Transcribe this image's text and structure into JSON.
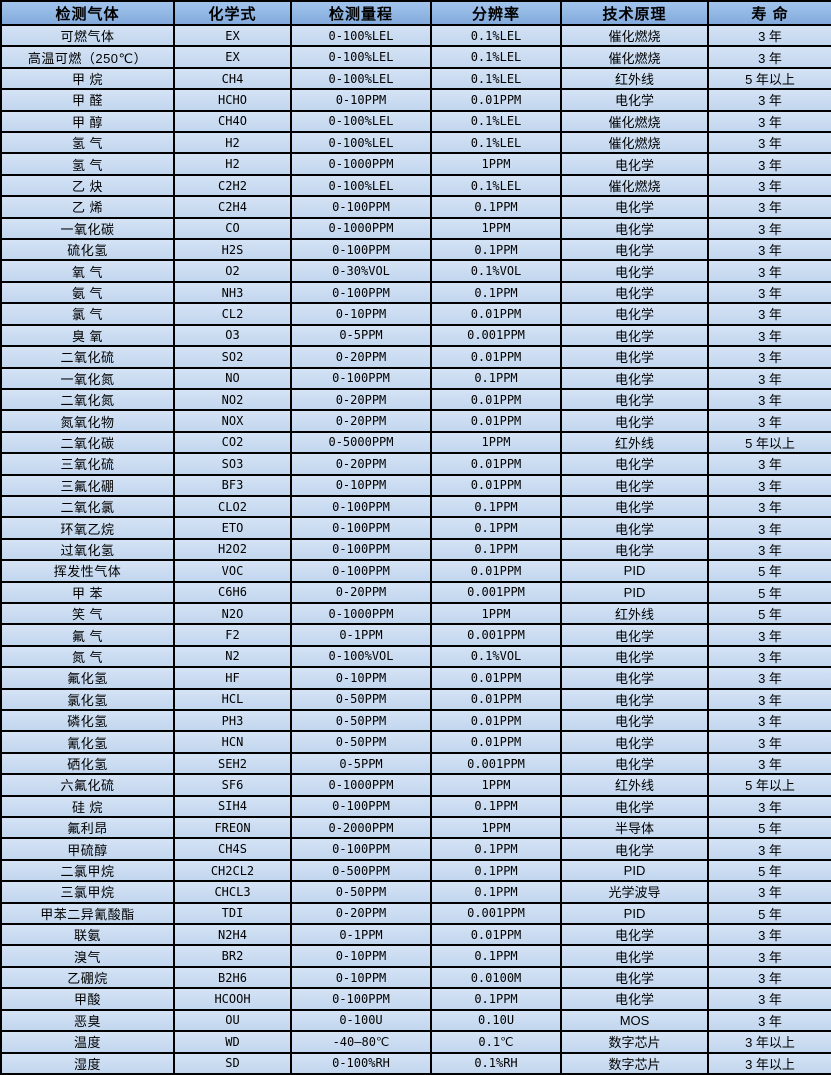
{
  "colors": {
    "header_bg_top": "#A2C5ED",
    "header_bg_bottom": "#82AADB",
    "row_bg_top": "#D5E3F5",
    "row_bg_bottom": "#C2D6EE",
    "border": "#000000",
    "text": "#000000"
  },
  "columns": [
    {
      "key": "gas",
      "label": "检测气体"
    },
    {
      "key": "formula",
      "label": "化学式"
    },
    {
      "key": "range",
      "label": "检测量程"
    },
    {
      "key": "resolution",
      "label": "分辨率"
    },
    {
      "key": "principle",
      "label": "技术原理"
    },
    {
      "key": "lifespan",
      "label": "寿 命"
    }
  ],
  "rows": [
    [
      "可燃气体",
      "EX",
      "0-100%LEL",
      "0.1%LEL",
      "催化燃烧",
      "3 年"
    ],
    [
      "高温可燃（250℃）",
      "EX",
      "0-100%LEL",
      "0.1%LEL",
      "催化燃烧",
      "3 年"
    ],
    [
      "甲 烷",
      "CH4",
      "0-100%LEL",
      "0.1%LEL",
      "红外线",
      "5 年以上"
    ],
    [
      "甲 醛",
      "HCHO",
      "0-10PPM",
      "0.01PPM",
      "电化学",
      "3 年"
    ],
    [
      "甲 醇",
      "CH4O",
      "0-100%LEL",
      "0.1%LEL",
      "催化燃烧",
      "3 年"
    ],
    [
      "氢 气",
      "H2",
      "0-100%LEL",
      "0.1%LEL",
      "催化燃烧",
      "3 年"
    ],
    [
      "氢 气",
      "H2",
      "0-1000PPM",
      "1PPM",
      "电化学",
      "3 年"
    ],
    [
      "乙 炔",
      "C2H2",
      "0-100%LEL",
      "0.1%LEL",
      "催化燃烧",
      "3 年"
    ],
    [
      "乙 烯",
      "C2H4",
      "0-100PPM",
      "0.1PPM",
      "电化学",
      "3 年"
    ],
    [
      "一氧化碳",
      "CO",
      "0-1000PPM",
      "1PPM",
      "电化学",
      "3 年"
    ],
    [
      "硫化氢",
      "H2S",
      "0-100PPM",
      "0.1PPM",
      "电化学",
      "3 年"
    ],
    [
      "氧 气",
      "O2",
      "0-30%VOL",
      "0.1%VOL",
      "电化学",
      "3 年"
    ],
    [
      "氨 气",
      "NH3",
      "0-100PPM",
      "0.1PPM",
      "电化学",
      "3 年"
    ],
    [
      "氯 气",
      "CL2",
      "0-10PPM",
      "0.01PPM",
      "电化学",
      "3 年"
    ],
    [
      "臭 氧",
      "O3",
      "0-5PPM",
      "0.001PPM",
      "电化学",
      "3 年"
    ],
    [
      "二氧化硫",
      "SO2",
      "0-20PPM",
      "0.01PPM",
      "电化学",
      "3 年"
    ],
    [
      "一氧化氮",
      "NO",
      "0-100PPM",
      "0.1PPM",
      "电化学",
      "3 年"
    ],
    [
      "二氧化氮",
      "NO2",
      "0-20PPM",
      "0.01PPM",
      "电化学",
      "3 年"
    ],
    [
      "氮氧化物",
      "NOX",
      "0-20PPM",
      "0.01PPM",
      "电化学",
      "3 年"
    ],
    [
      "二氧化碳",
      "CO2",
      "0-5000PPM",
      "1PPM",
      "红外线",
      "5 年以上"
    ],
    [
      "三氧化硫",
      "SO3",
      "0-20PPM",
      "0.01PPM",
      "电化学",
      "3 年"
    ],
    [
      "三氟化硼",
      "BF3",
      "0-10PPM",
      "0.01PPM",
      "电化学",
      "3 年"
    ],
    [
      "二氧化氯",
      "CLO2",
      "0-100PPM",
      "0.1PPM",
      "电化学",
      "3 年"
    ],
    [
      "环氧乙烷",
      "ETO",
      "0-100PPM",
      "0.1PPM",
      "电化学",
      "3 年"
    ],
    [
      "过氧化氢",
      "H2O2",
      "0-100PPM",
      "0.1PPM",
      "电化学",
      "3 年"
    ],
    [
      "挥发性气体",
      "VOC",
      "0-100PPM",
      "0.01PPM",
      "PID",
      "5 年"
    ],
    [
      "甲 苯",
      "C6H6",
      "0-20PPM",
      "0.001PPM",
      "PID",
      "5 年"
    ],
    [
      "笑 气",
      "N2O",
      "0-1000PPM",
      "1PPM",
      "红外线",
      "5 年"
    ],
    [
      "氟 气",
      "F2",
      "0-1PPM",
      "0.001PPM",
      "电化学",
      "3 年"
    ],
    [
      "氮 气",
      "N2",
      "0-100%VOL",
      "0.1%VOL",
      "电化学",
      "3 年"
    ],
    [
      "氟化氢",
      "HF",
      "0-10PPM",
      "0.01PPM",
      "电化学",
      "3 年"
    ],
    [
      "氯化氢",
      "HCL",
      "0-50PPM",
      "0.01PPM",
      "电化学",
      "3 年"
    ],
    [
      "磷化氢",
      "PH3",
      "0-50PPM",
      "0.01PPM",
      "电化学",
      "3 年"
    ],
    [
      "氰化氢",
      "HCN",
      "0-50PPM",
      "0.01PPM",
      "电化学",
      "3 年"
    ],
    [
      "硒化氢",
      "SEH2",
      "0-5PPM",
      "0.001PPM",
      "电化学",
      "3 年"
    ],
    [
      "六氟化硫",
      "SF6",
      "0-1000PPM",
      "1PPM",
      "红外线",
      "5 年以上"
    ],
    [
      "硅 烷",
      "SIH4",
      "0-100PPM",
      "0.1PPM",
      "电化学",
      "3 年"
    ],
    [
      "氟利昂",
      "FREON",
      "0-2000PPM",
      "1PPM",
      "半导体",
      "5 年"
    ],
    [
      "甲硫醇",
      "CH4S",
      "0-100PPM",
      "0.1PPM",
      "电化学",
      "3 年"
    ],
    [
      "二氯甲烷",
      "CH2CL2",
      "0-500PPM",
      "0.1PPM",
      "PID",
      "5 年"
    ],
    [
      "三氯甲烷",
      "CHCL3",
      "0-50PPM",
      "0.1PPM",
      "光学波导",
      "3 年"
    ],
    [
      "甲苯二异氰酸酯",
      "TDI",
      "0-20PPM",
      "0.001PPM",
      "PID",
      "5 年"
    ],
    [
      "联氨",
      "N2H4",
      "0-1PPM",
      "0.01PPM",
      "电化学",
      "3 年"
    ],
    [
      "溴气",
      "BR2",
      "0-10PPM",
      "0.1PPM",
      "电化学",
      "3 年"
    ],
    [
      "乙硼烷",
      "B2H6",
      "0-10PPM",
      "0.0100M",
      "电化学",
      "3 年"
    ],
    [
      "甲酸",
      "HCOOH",
      "0-100PPM",
      "0.1PPM",
      "电化学",
      "3 年"
    ],
    [
      "恶臭",
      "OU",
      "0-100U",
      "0.10U",
      "MOS",
      "3 年"
    ],
    [
      "温度",
      "WD",
      "-40—80℃",
      "0.1℃",
      "数字芯片",
      "3 年以上"
    ],
    [
      "湿度",
      "SD",
      "0-100%RH",
      "0.1%RH",
      "数字芯片",
      "3 年以上"
    ]
  ]
}
